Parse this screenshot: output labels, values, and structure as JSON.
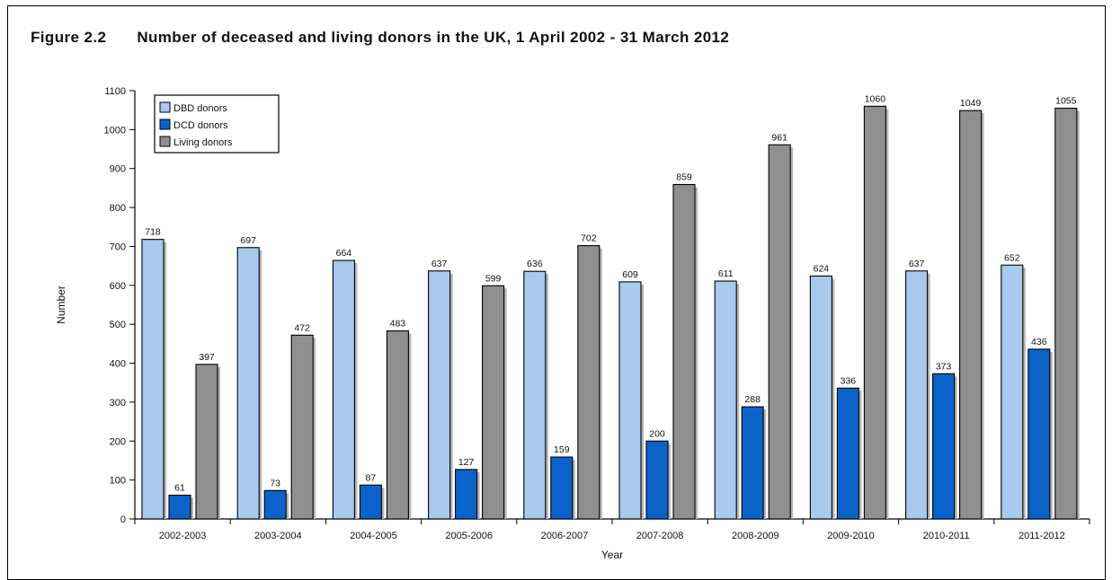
{
  "figure": {
    "number": "Figure 2.2",
    "title": "Number of deceased and living donors in the UK, 1 April 2002 - 31 March 2012"
  },
  "chart_data": {
    "type": "bar",
    "xlabel": "Year",
    "ylabel": "Number",
    "ylim": [
      0,
      1100
    ],
    "yticks": [
      0,
      100,
      200,
      300,
      400,
      500,
      600,
      700,
      800,
      900,
      1000,
      1100
    ],
    "grid": false,
    "legend_position": "top-left",
    "categories": [
      "2002-2003",
      "2003-2004",
      "2004-2005",
      "2005-2006",
      "2006-2007",
      "2007-2008",
      "2008-2009",
      "2009-2010",
      "2010-2011",
      "2011-2012"
    ],
    "series": [
      {
        "name": "DBD donors",
        "color": "#a9c9ee",
        "values": [
          718,
          697,
          664,
          637,
          636,
          609,
          611,
          624,
          637,
          652
        ]
      },
      {
        "name": "DCD donors",
        "color": "#0b63c9",
        "values": [
          61,
          73,
          87,
          127,
          159,
          200,
          288,
          336,
          373,
          436
        ]
      },
      {
        "name": "Living donors",
        "color": "#8f8f8f",
        "values": [
          397,
          472,
          483,
          599,
          702,
          859,
          961,
          1060,
          1049,
          1055
        ]
      }
    ]
  }
}
